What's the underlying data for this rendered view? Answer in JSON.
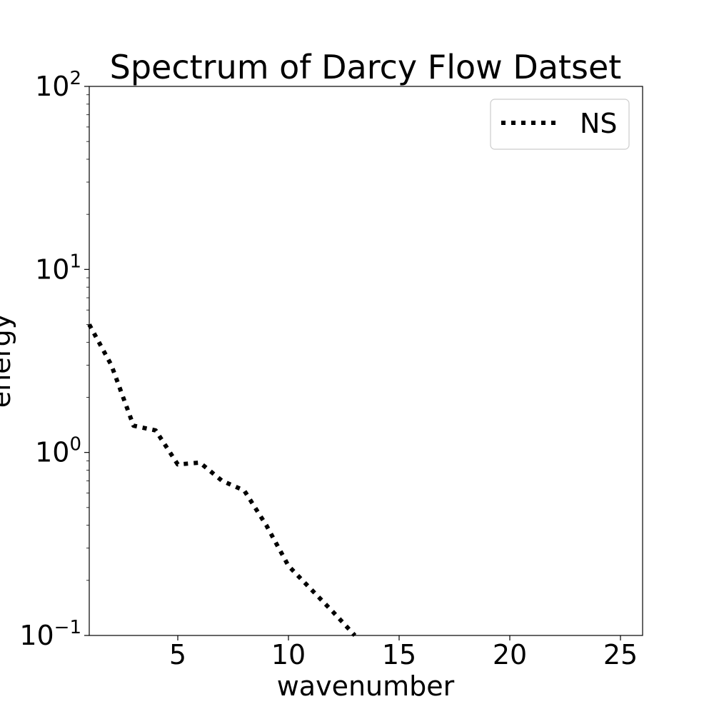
{
  "chart_data": {
    "type": "line",
    "title": "Spectrum of Darcy Flow Datset",
    "xlabel": "wavenumber",
    "ylabel": "energy",
    "xlim": [
      1,
      26
    ],
    "ylim": [
      0.1,
      100
    ],
    "yscale": "log",
    "grid": false,
    "legend_position": "top-right",
    "xticks": [
      5,
      10,
      15,
      20,
      25
    ],
    "yticks": [
      {
        "base": "10",
        "exp": "−1"
      },
      {
        "base": "10",
        "exp": "0"
      },
      {
        "base": "10",
        "exp": "1"
      },
      {
        "base": "10",
        "exp": "2"
      }
    ],
    "series": [
      {
        "name": "NS",
        "line_style": "dotted",
        "color": "#000000",
        "x": [
          1,
          2,
          3,
          4,
          5,
          6,
          7,
          8,
          9,
          10,
          11,
          12,
          13
        ],
        "y": [
          5.0,
          3.0,
          1.4,
          1.32,
          0.86,
          0.88,
          0.7,
          0.62,
          0.4,
          0.24,
          0.18,
          0.135,
          0.1
        ]
      }
    ]
  }
}
